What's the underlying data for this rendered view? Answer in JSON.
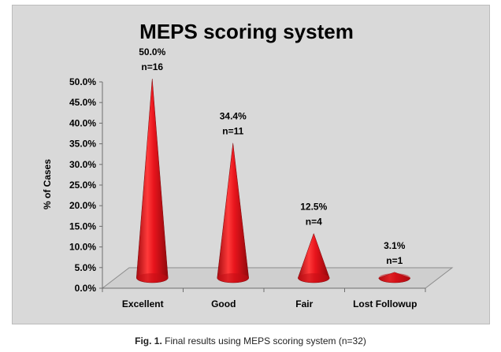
{
  "chart_data": {
    "type": "bar",
    "title": "MEPS scoring system",
    "xlabel": "",
    "ylabel": "% of Cases",
    "categories": [
      "Excellent",
      "Good",
      "Fair",
      "Lost Followup"
    ],
    "values": [
      50.0,
      34.4,
      12.5,
      3.1
    ],
    "data_labels": [
      "50.0%",
      "34.4%",
      "12.5%",
      "3.1%"
    ],
    "count_labels": [
      "n=16",
      "n=11",
      "n=4",
      "n=1"
    ],
    "y_ticks": [
      "0.0%",
      "5.0%",
      "10.0%",
      "15.0%",
      "20.0%",
      "25.0%",
      "30.0%",
      "35.0%",
      "40.0%",
      "45.0%",
      "50.0%"
    ],
    "ylim": [
      0,
      50
    ],
    "bar_shape": "cone",
    "grid": false,
    "legend": "none",
    "colors": {
      "bars": "#e8141c",
      "bars_dark": "#9e0a0d",
      "background": "#d9d9d9"
    }
  },
  "caption": {
    "label": "Fig. 1.",
    "text": " Final results using MEPS scoring system (n=32)"
  }
}
